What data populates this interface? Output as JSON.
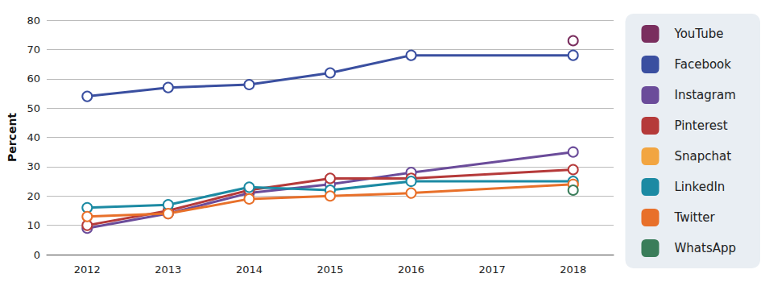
{
  "chart_data": {
    "type": "line",
    "y_label": "Percent",
    "categories": [
      "2012",
      "2013",
      "2014",
      "2015",
      "2016",
      "2017",
      "2018"
    ],
    "ylim": [
      0,
      80
    ],
    "yticks": [
      0,
      10,
      20,
      30,
      40,
      50,
      60,
      70,
      80
    ],
    "grid": true,
    "legend": "right",
    "marker": "circle",
    "series": [
      {
        "name": "YouTube",
        "color": "#7a2e5e",
        "values": [
          null,
          null,
          null,
          null,
          null,
          null,
          73
        ]
      },
      {
        "name": "Facebook",
        "color": "#3a4fa0",
        "values": [
          54,
          57,
          58,
          62,
          68,
          null,
          68
        ]
      },
      {
        "name": "Instagram",
        "color": "#6b4c9a",
        "values": [
          9,
          14,
          21,
          24,
          28,
          null,
          35
        ]
      },
      {
        "name": "Pinterest",
        "color": "#b53a3a",
        "values": [
          10,
          15,
          22,
          26,
          26,
          null,
          29
        ]
      },
      {
        "name": "Snapchat",
        "color": "#f2a541",
        "values": [
          null,
          null,
          null,
          null,
          null,
          null,
          24
        ]
      },
      {
        "name": "LinkedIn",
        "color": "#1c8aa3",
        "values": [
          16,
          17,
          23,
          22,
          25,
          null,
          25
        ]
      },
      {
        "name": "Twitter",
        "color": "#e8702a",
        "values": [
          13,
          14,
          19,
          20,
          21,
          null,
          24
        ]
      },
      {
        "name": "WhatsApp",
        "color": "#3a7d5a",
        "values": [
          null,
          null,
          null,
          null,
          null,
          null,
          22
        ]
      }
    ]
  }
}
